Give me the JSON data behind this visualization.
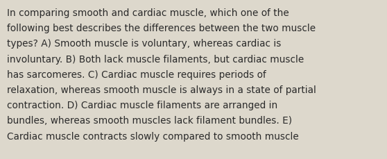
{
  "background_color": "#ddd8cc",
  "text_color": "#2a2a2a",
  "font_size": 9.8,
  "font_family": "DejaVu Sans",
  "text": "In comparing smooth and cardiac muscle, which one of the\nfollowing best describes the differences between the two muscle\ntypes? A) Smooth muscle is voluntary, whereas cardiac is\ninvoluntary. B) Both lack muscle filaments, but cardiac muscle\nhas sarcomeres. C) Cardiac muscle requires periods of\nrelaxation, whereas smooth muscle is always in a state of partial\ncontraction. D) Cardiac muscle filaments are arranged in\nbundles, whereas smooth muscles lack filament bundles. E)\nCardiac muscle contracts slowly compared to smooth muscle"
}
